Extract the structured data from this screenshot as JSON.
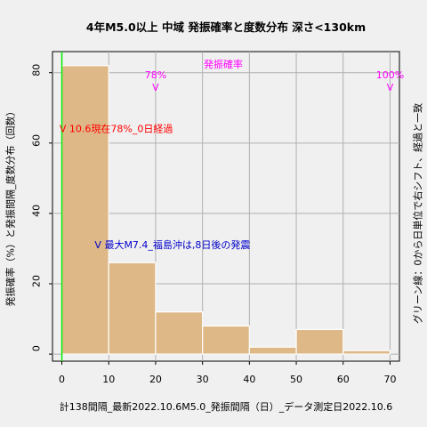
{
  "chart_data": {
    "type": "bar",
    "title": "4年M5.0以上 中域 発振確率と度数分布 深さ<130km",
    "xlabel": "計138間隔_最新2022.10.6M5.0_発振間隔（日）_データ測定日2022.10.6",
    "ylabel": "発振確率（%）と発振間隔_度数分布（回数）",
    "right_label": "グリーン線：0から日単位で右シフト、経過と一致",
    "xlim": [
      -2,
      72
    ],
    "ylim": [
      -2,
      86
    ],
    "xticks": [
      0,
      10,
      20,
      30,
      40,
      50,
      60,
      70
    ],
    "yticks": [
      0,
      20,
      40,
      60,
      80
    ],
    "bin_width": 10,
    "bins": [
      {
        "x": 0,
        "count": 82
      },
      {
        "x": 10,
        "count": 26
      },
      {
        "x": 20,
        "count": 12
      },
      {
        "x": 30,
        "count": 8
      },
      {
        "x": 40,
        "count": 2
      },
      {
        "x": 50,
        "count": 7
      },
      {
        "x": 60,
        "count": 1
      }
    ],
    "bar_color": "#deb887",
    "green_line_x": 0,
    "green_color": "#00ee00",
    "prob_color": "#ff00ff",
    "prob_series_label": "発振確率",
    "prob_markers": [
      {
        "x": 20,
        "label": "78%",
        "symbol": "V"
      },
      {
        "x": 70,
        "label": "100%",
        "symbol": "V"
      }
    ],
    "annotations": [
      {
        "text": "V 10.6現在78%_0日経過",
        "x": -0.5,
        "y": 64,
        "color": "#ff0000"
      },
      {
        "text": "V 最大M7.4_福島沖は,8日後の発震",
        "x": 7,
        "y": 31,
        "color": "#0000cc"
      }
    ],
    "grid": true
  }
}
